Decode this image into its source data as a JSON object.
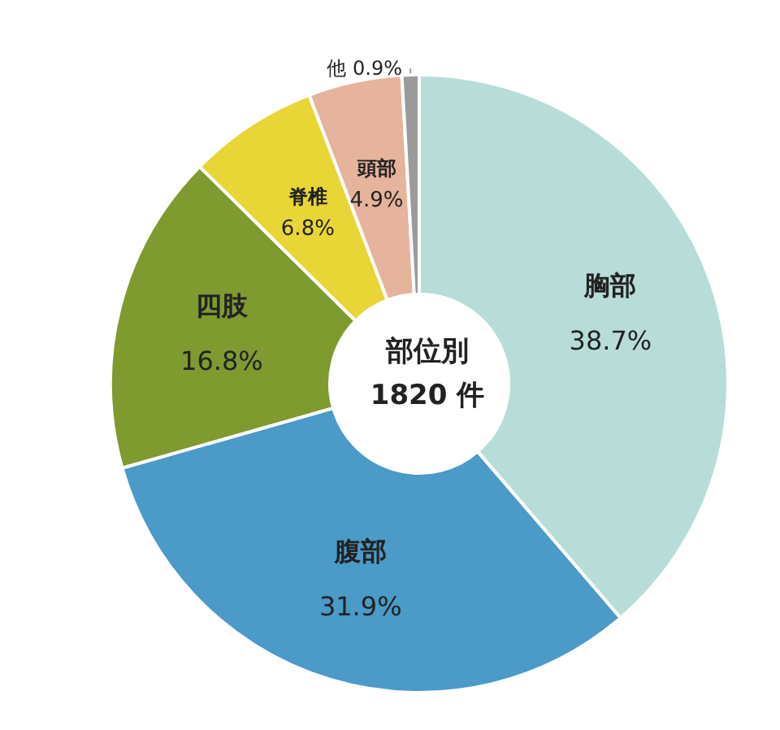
{
  "chart_data": {
    "type": "donut",
    "title": "部位別",
    "subtitle": "1820 件",
    "categories": [
      "胸部",
      "腹部",
      "四肢",
      "脊椎",
      "頭部",
      "他"
    ],
    "values": [
      38.7,
      31.9,
      16.8,
      6.8,
      4.9,
      0.9
    ],
    "value_labels": [
      "38.7%",
      "31.9%",
      "16.8%",
      "6.8%",
      "4.9%",
      "0.9%"
    ],
    "colors": [
      "#b8ddd9",
      "#4b9ac8",
      "#7f9a2f",
      "#e8d536",
      "#e6b39d",
      "#9b9b9b"
    ],
    "legend": false
  }
}
